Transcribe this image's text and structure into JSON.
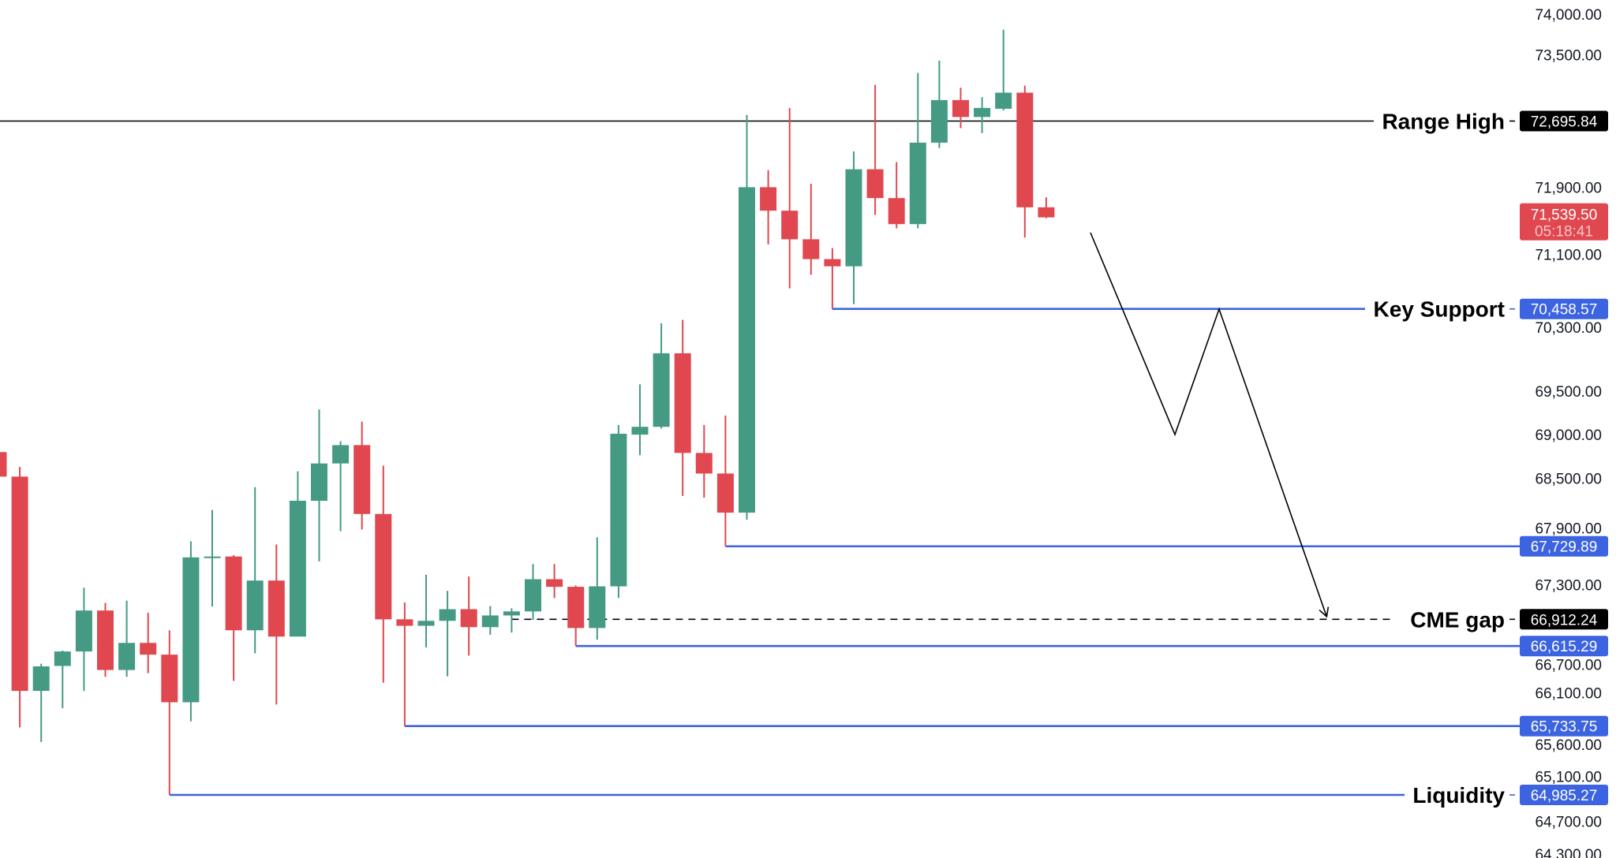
{
  "chart_data": {
    "type": "candlestick",
    "y_scale": "log",
    "ylim": [
      64300,
      74000
    ],
    "grid": false,
    "colors": {
      "up": "#459a83",
      "down": "#e0474f",
      "level_blue": "#3c63e0",
      "level_black": "#000000",
      "last_price": "#e0474f"
    },
    "y_ticks": [
      "74,000.00",
      "73,500.00",
      "71,900.00",
      "71,100.00",
      "70,300.00",
      "69,500.00",
      "69,000.00",
      "68,500.00",
      "67,900.00",
      "67,300.00",
      "66,700.00",
      "66,100.00",
      "65,600.00",
      "65,100.00",
      "64,700.00",
      "64,300.00"
    ],
    "y_tick_values": [
      74000,
      73500,
      71900,
      71100,
      70300,
      69500,
      69000,
      68500,
      67900,
      67300,
      66700,
      66100,
      65600,
      65100,
      64700,
      64300
    ],
    "candles": [
      {
        "o": 68800,
        "h": 68900,
        "l": 68500,
        "c": 68520
      },
      {
        "o": 68520,
        "h": 68630,
        "l": 65720,
        "c": 66120
      },
      {
        "o": 66120,
        "h": 66420,
        "l": 65560,
        "c": 66390
      },
      {
        "o": 66395,
        "h": 66565,
        "l": 65930,
        "c": 66555
      },
      {
        "o": 66555,
        "h": 67265,
        "l": 66120,
        "c": 67010
      },
      {
        "o": 67010,
        "h": 67095,
        "l": 66275,
        "c": 66350
      },
      {
        "o": 66350,
        "h": 67120,
        "l": 66275,
        "c": 66650
      },
      {
        "o": 66650,
        "h": 66985,
        "l": 66315,
        "c": 66520
      },
      {
        "o": 66520,
        "h": 66790,
        "l": 64985,
        "c": 65995
      },
      {
        "o": 65995,
        "h": 67785,
        "l": 65785,
        "c": 67605
      },
      {
        "o": 67605,
        "h": 68140,
        "l": 67055,
        "c": 67615
      },
      {
        "o": 67615,
        "h": 67630,
        "l": 66230,
        "c": 66790
      },
      {
        "o": 66790,
        "h": 68400,
        "l": 66535,
        "c": 67345
      },
      {
        "o": 67345,
        "h": 67750,
        "l": 65970,
        "c": 66720
      },
      {
        "o": 66720,
        "h": 68580,
        "l": 66720,
        "c": 68245
      },
      {
        "o": 68245,
        "h": 69290,
        "l": 67560,
        "c": 68670
      },
      {
        "o": 68670,
        "h": 68925,
        "l": 67900,
        "c": 68880
      },
      {
        "o": 68880,
        "h": 69150,
        "l": 67920,
        "c": 68095
      },
      {
        "o": 68095,
        "h": 68645,
        "l": 66210,
        "c": 66912
      },
      {
        "o": 66912,
        "h": 67100,
        "l": 65734,
        "c": 66840
      },
      {
        "o": 66840,
        "h": 67410,
        "l": 66600,
        "c": 66895
      },
      {
        "o": 66895,
        "h": 67230,
        "l": 66280,
        "c": 67025
      },
      {
        "o": 67025,
        "h": 67390,
        "l": 66510,
        "c": 66825
      },
      {
        "o": 66825,
        "h": 67060,
        "l": 66740,
        "c": 66955
      },
      {
        "o": 66955,
        "h": 67035,
        "l": 66765,
        "c": 67000
      },
      {
        "o": 67000,
        "h": 67530,
        "l": 66905,
        "c": 67360
      },
      {
        "o": 67360,
        "h": 67530,
        "l": 67150,
        "c": 67275
      },
      {
        "o": 67275,
        "h": 67290,
        "l": 66615,
        "c": 66815
      },
      {
        "o": 66815,
        "h": 67830,
        "l": 66685,
        "c": 67280
      },
      {
        "o": 67280,
        "h": 69110,
        "l": 67150,
        "c": 69010
      },
      {
        "o": 69000,
        "h": 69580,
        "l": 68765,
        "c": 69090
      },
      {
        "o": 69090,
        "h": 70290,
        "l": 69070,
        "c": 69940
      },
      {
        "o": 69940,
        "h": 70330,
        "l": 68300,
        "c": 68790
      },
      {
        "o": 68790,
        "h": 69110,
        "l": 68280,
        "c": 68555
      },
      {
        "o": 68555,
        "h": 69220,
        "l": 67730,
        "c": 68110
      },
      {
        "o": 68110,
        "h": 72770,
        "l": 68030,
        "c": 71900
      },
      {
        "o": 71900,
        "h": 72105,
        "l": 71220,
        "c": 71620
      },
      {
        "o": 71620,
        "h": 72855,
        "l": 70700,
        "c": 71280
      },
      {
        "o": 71280,
        "h": 71940,
        "l": 70860,
        "c": 71045
      },
      {
        "o": 71045,
        "h": 71175,
        "l": 70459,
        "c": 70960
      },
      {
        "o": 70960,
        "h": 72330,
        "l": 70515,
        "c": 72115
      },
      {
        "o": 72115,
        "h": 73135,
        "l": 71570,
        "c": 71770
      },
      {
        "o": 71770,
        "h": 72200,
        "l": 71410,
        "c": 71460
      },
      {
        "o": 71460,
        "h": 73280,
        "l": 71410,
        "c": 72435
      },
      {
        "o": 72435,
        "h": 73430,
        "l": 72370,
        "c": 72950
      },
      {
        "o": 72950,
        "h": 73100,
        "l": 72610,
        "c": 72745
      },
      {
        "o": 72745,
        "h": 72985,
        "l": 72550,
        "c": 72855
      },
      {
        "o": 72845,
        "h": 73810,
        "l": 72825,
        "c": 73040
      },
      {
        "o": 73040,
        "h": 73125,
        "l": 71300,
        "c": 71660
      },
      {
        "o": 71660,
        "h": 71780,
        "l": 71530,
        "c": 71540
      }
    ],
    "levels": [
      {
        "value": 72695.84,
        "label": "Range High",
        "badge": "72,695.84",
        "color": "#000000",
        "style": "solid",
        "from_candle": null
      },
      {
        "value": 70458.57,
        "label": "Key Support",
        "badge": "70,458.57",
        "color": "#3c63e0",
        "style": "solid",
        "from_candle": 39
      },
      {
        "value": 67729.89,
        "label": "",
        "badge": "67,729.89",
        "color": "#3c63e0",
        "style": "solid",
        "from_candle": 34
      },
      {
        "value": 66912.24,
        "label": "CME gap",
        "badge": "66,912.24",
        "color": "#000000",
        "style": "dashed",
        "from_candle": 24
      },
      {
        "value": 66615.29,
        "label": "",
        "badge": "66,615.29",
        "color": "#3c63e0",
        "style": "solid",
        "from_candle": 27
      },
      {
        "value": 65733.75,
        "label": "",
        "badge": "65,733.75",
        "color": "#3c63e0",
        "style": "solid",
        "from_candle": 19
      },
      {
        "value": 64985.27,
        "label": "Liquidity",
        "badge": "64,985.27",
        "color": "#3c63e0",
        "style": "solid",
        "from_candle": 8
      }
    ],
    "last_price": {
      "value": 71539.5,
      "label": "71,539.50",
      "countdown": "05:18:41"
    },
    "projection": {
      "type": "arrow-path",
      "target_level": "CME gap"
    }
  }
}
